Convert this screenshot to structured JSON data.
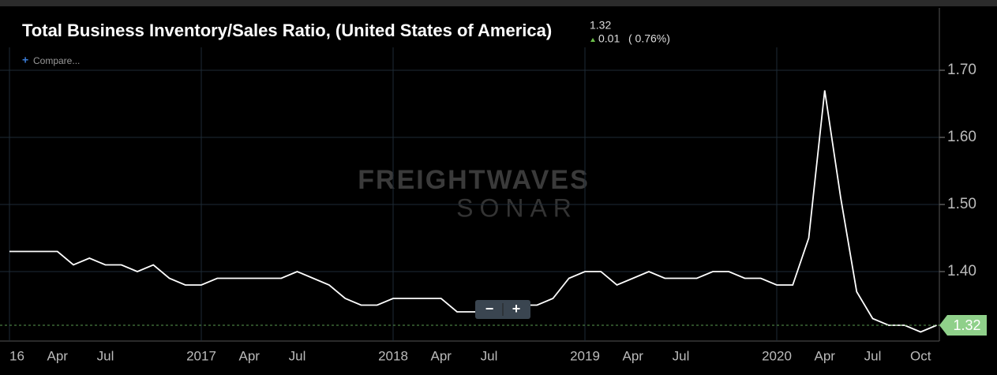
{
  "header": {
    "title": "Total Business Inventory/Sales Ratio, (United States of America)",
    "value": "1.32",
    "change": "0.01",
    "change_pct": "( 0.76%)",
    "compare": "Compare..."
  },
  "watermark": {
    "brand": "FREIGHTWAVES",
    "product": "SONAR"
  },
  "controls": {
    "zoom_out": "−",
    "zoom_in": "+"
  },
  "chart_data": {
    "type": "line",
    "color": "#ffffff",
    "grid": true,
    "x": [
      "2016-01",
      "2016-02",
      "2016-03",
      "2016-04",
      "2016-05",
      "2016-06",
      "2016-07",
      "2016-08",
      "2016-09",
      "2016-10",
      "2016-11",
      "2016-12",
      "2017-01",
      "2017-02",
      "2017-03",
      "2017-04",
      "2017-05",
      "2017-06",
      "2017-07",
      "2017-08",
      "2017-09",
      "2017-10",
      "2017-11",
      "2017-12",
      "2018-01",
      "2018-02",
      "2018-03",
      "2018-04",
      "2018-05",
      "2018-06",
      "2018-07",
      "2018-08",
      "2018-09",
      "2018-10",
      "2018-11",
      "2018-12",
      "2019-01",
      "2019-02",
      "2019-03",
      "2019-04",
      "2019-05",
      "2019-06",
      "2019-07",
      "2019-08",
      "2019-09",
      "2019-10",
      "2019-11",
      "2019-12",
      "2020-01",
      "2020-02",
      "2020-03",
      "2020-04",
      "2020-05",
      "2020-06",
      "2020-07",
      "2020-08",
      "2020-09",
      "2020-10",
      "2020-11"
    ],
    "values": [
      1.43,
      1.43,
      1.43,
      1.43,
      1.41,
      1.42,
      1.41,
      1.41,
      1.4,
      1.41,
      1.39,
      1.38,
      1.38,
      1.39,
      1.39,
      1.39,
      1.39,
      1.39,
      1.4,
      1.39,
      1.38,
      1.36,
      1.35,
      1.35,
      1.36,
      1.36,
      1.36,
      1.36,
      1.34,
      1.34,
      1.34,
      1.35,
      1.35,
      1.35,
      1.36,
      1.39,
      1.4,
      1.4,
      1.38,
      1.39,
      1.4,
      1.39,
      1.39,
      1.39,
      1.4,
      1.4,
      1.39,
      1.39,
      1.38,
      1.38,
      1.45,
      1.67,
      1.51,
      1.37,
      1.33,
      1.32,
      1.32,
      1.31,
      1.32
    ],
    "ylim": [
      1.3,
      1.75
    ],
    "yticks": [
      {
        "value": 1.4,
        "label": "1.40"
      },
      {
        "value": 1.5,
        "label": "1.50"
      },
      {
        "value": 1.6,
        "label": "1.60"
      },
      {
        "value": 1.7,
        "label": "1.70"
      }
    ],
    "xticks": [
      {
        "value": "2016-01",
        "label": "16"
      },
      {
        "value": "2016-04",
        "label": "Apr"
      },
      {
        "value": "2016-07",
        "label": "Jul"
      },
      {
        "value": "2017-01",
        "label": "2017"
      },
      {
        "value": "2017-04",
        "label": "Apr"
      },
      {
        "value": "2017-07",
        "label": "Jul"
      },
      {
        "value": "2018-01",
        "label": "2018"
      },
      {
        "value": "2018-04",
        "label": "Apr"
      },
      {
        "value": "2018-07",
        "label": "Jul"
      },
      {
        "value": "2019-01",
        "label": "2019"
      },
      {
        "value": "2019-04",
        "label": "Apr"
      },
      {
        "value": "2019-07",
        "label": "Jul"
      },
      {
        "value": "2020-01",
        "label": "2020"
      },
      {
        "value": "2020-04",
        "label": "Apr"
      },
      {
        "value": "2020-07",
        "label": "Jul"
      },
      {
        "value": "2020-10",
        "label": "Oct"
      }
    ]
  }
}
